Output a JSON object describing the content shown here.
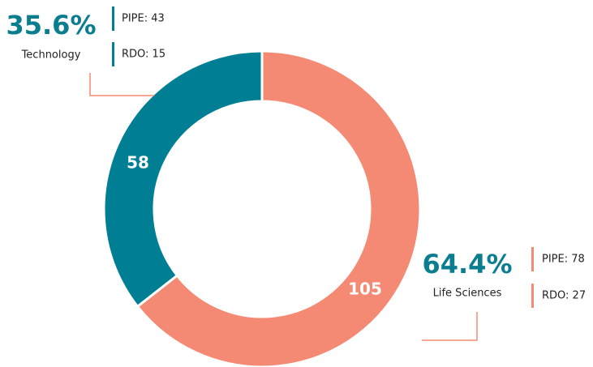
{
  "chart_data": {
    "type": "donut",
    "categories": [
      "Life Sciences",
      "Technology"
    ],
    "values": [
      105,
      58
    ],
    "colors": [
      "#f58a74",
      "#007f94"
    ],
    "shares": [
      64.4,
      35.6
    ],
    "share_labels": [
      "64.4%",
      "35.6%"
    ],
    "breakdown": [
      {
        "values": [
          78,
          43
        ],
        "value_labels": [
          "PIPE: 78",
          "PIPE: 43"
        ]
      },
      {
        "values": [
          27,
          15
        ],
        "value_labels": [
          "RDO: 27",
          "RDO: 15"
        ]
      }
    ]
  }
}
